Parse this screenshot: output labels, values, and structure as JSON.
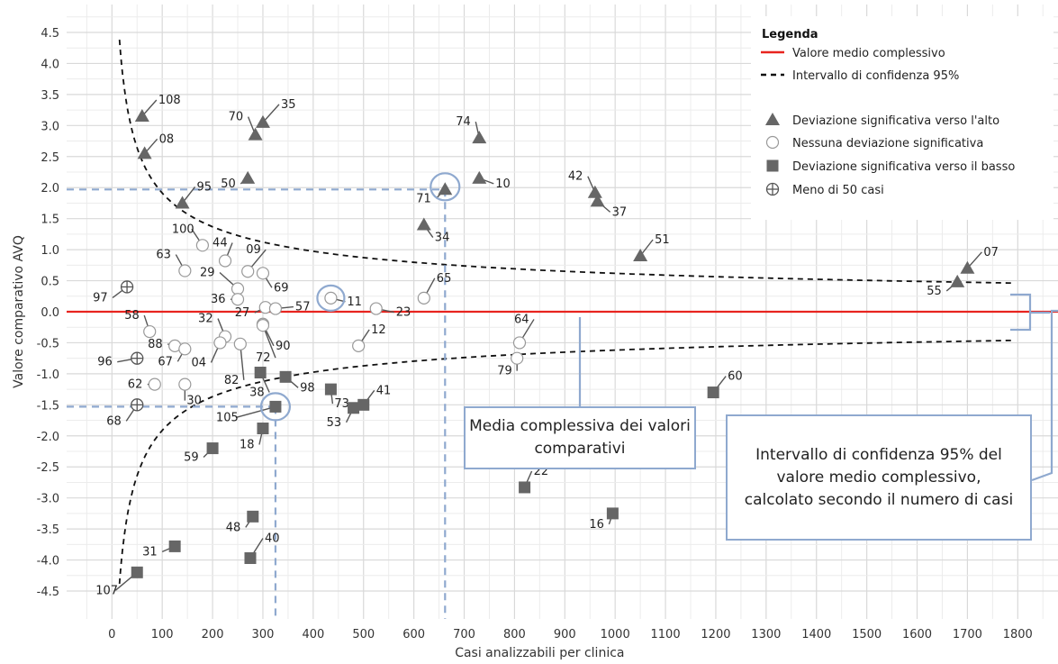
{
  "chart_data": {
    "type": "scatter",
    "xlabel": "Casi analizzabili per clinica",
    "ylabel": "Valore comparativo AVQ",
    "xlim": [
      -90,
      1880
    ],
    "ylim": [
      -4.95,
      4.95
    ],
    "x_ticks": [
      0,
      100,
      200,
      300,
      400,
      500,
      600,
      700,
      800,
      900,
      1000,
      1100,
      1200,
      1300,
      1400,
      1500,
      1600,
      1700,
      1800
    ],
    "y_ticks": [
      4.5,
      4.0,
      3.5,
      3.0,
      2.5,
      2.0,
      1.5,
      1.0,
      0.5,
      0.0,
      -0.5,
      -1.0,
      -1.5,
      -2.0,
      -2.5,
      -3.0,
      -3.5,
      -4.0,
      -4.5
    ],
    "y_tick_labels": [
      "4.5",
      "4.0",
      "3.5",
      "3.0",
      "2.5",
      "2.0",
      "1.5",
      "1.0",
      "0.5",
      "0.0",
      "-0.5",
      "-1.0",
      "-1.5",
      "-2.0",
      "-2.5",
      "-3.0",
      "-3.5",
      "-4.0",
      "-4.5"
    ],
    "grid": true,
    "mean_value": 0.0,
    "legend": {
      "title": "Legenda",
      "position": "top-right",
      "entries": [
        {
          "label": "Valore medio complessivo",
          "kind": "line-solid",
          "color": "#e8241f"
        },
        {
          "label": "Intervallo di confidenza 95%",
          "kind": "line-dashed",
          "color": "#111111"
        },
        {
          "label": "Deviazione significativa verso l'alto",
          "kind": "triangle",
          "color": "#666666"
        },
        {
          "label": "Nessuna deviazione significativa",
          "kind": "circle",
          "color": "#999999"
        },
        {
          "label": "Deviazione significativa verso il basso",
          "kind": "square",
          "color": "#666666"
        },
        {
          "label": "Meno di 50 casi",
          "kind": "crosscircle",
          "color": "#555555"
        }
      ]
    },
    "annotations": [
      {
        "id": "mean",
        "text": "Media complessiva dei valori comparativi"
      },
      {
        "id": "ci",
        "text": "Intervallo di confidenza 95% del valore medio complessivo, calcolato secondo il numero di casi"
      }
    ],
    "series": [
      {
        "type": "up",
        "points": [
          {
            "label": "108",
            "x": 60,
            "y": 3.15
          },
          {
            "label": "08",
            "x": 65,
            "y": 2.55
          },
          {
            "label": "95",
            "x": 140,
            "y": 1.75
          },
          {
            "label": "35",
            "x": 300,
            "y": 3.05
          },
          {
            "label": "70",
            "x": 285,
            "y": 2.85
          },
          {
            "label": "50",
            "x": 270,
            "y": 2.15
          },
          {
            "label": "74",
            "x": 730,
            "y": 2.8
          },
          {
            "label": "10",
            "x": 730,
            "y": 2.15
          },
          {
            "label": "71",
            "x": 662,
            "y": 1.97
          },
          {
            "label": "34",
            "x": 620,
            "y": 1.4
          },
          {
            "label": "42",
            "x": 960,
            "y": 1.92
          },
          {
            "label": "37",
            "x": 965,
            "y": 1.78
          },
          {
            "label": "51",
            "x": 1050,
            "y": 0.9
          },
          {
            "label": "07",
            "x": 1700,
            "y": 0.7
          },
          {
            "label": "55",
            "x": 1680,
            "y": 0.48
          }
        ]
      },
      {
        "type": "none",
        "points": [
          {
            "label": "100",
            "x": 180,
            "y": 1.07
          },
          {
            "label": "44",
            "x": 225,
            "y": 0.82
          },
          {
            "label": "09",
            "x": 270,
            "y": 0.65
          },
          {
            "label": "63",
            "x": 145,
            "y": 0.66
          },
          {
            "label": "69",
            "x": 300,
            "y": 0.62
          },
          {
            "label": "29",
            "x": 250,
            "y": 0.37
          },
          {
            "label": "36",
            "x": 250,
            "y": 0.2
          },
          {
            "label": "27",
            "x": 305,
            "y": 0.07
          },
          {
            "label": "57",
            "x": 325,
            "y": 0.05
          },
          {
            "label": "11",
            "x": 435,
            "y": 0.22
          },
          {
            "label": "65",
            "x": 620,
            "y": 0.22
          },
          {
            "label": "23",
            "x": 525,
            "y": 0.05
          },
          {
            "label": "90",
            "x": 300,
            "y": -0.2
          },
          {
            "label": "72",
            "x": 300,
            "y": -0.22
          },
          {
            "label": "58",
            "x": 75,
            "y": -0.32
          },
          {
            "label": "32",
            "x": 225,
            "y": -0.4
          },
          {
            "label": "88",
            "x": 125,
            "y": -0.55
          },
          {
            "label": "67",
            "x": 145,
            "y": -0.6
          },
          {
            "label": "04",
            "x": 215,
            "y": -0.5
          },
          {
            "label": "82",
            "x": 255,
            "y": -0.52
          },
          {
            "label": "12",
            "x": 490,
            "y": -0.55
          },
          {
            "label": "64",
            "x": 810,
            "y": -0.5
          },
          {
            "label": "79",
            "x": 805,
            "y": -0.75
          },
          {
            "label": "62",
            "x": 85,
            "y": -1.17
          },
          {
            "label": "30",
            "x": 145,
            "y": -1.17
          }
        ]
      },
      {
        "type": "down",
        "points": [
          {
            "label": "38",
            "x": 295,
            "y": -0.98
          },
          {
            "label": "98",
            "x": 345,
            "y": -1.05
          },
          {
            "label": "73",
            "x": 435,
            "y": -1.25
          },
          {
            "label": "41",
            "x": 500,
            "y": -1.5
          },
          {
            "label": "53",
            "x": 480,
            "y": -1.55
          },
          {
            "label": "105",
            "x": 325,
            "y": -1.53
          },
          {
            "label": "18",
            "x": 300,
            "y": -1.88
          },
          {
            "label": "59",
            "x": 200,
            "y": -2.2
          },
          {
            "label": "60",
            "x": 1195,
            "y": -1.3
          },
          {
            "label": "22",
            "x": 820,
            "y": -2.83
          },
          {
            "label": "16",
            "x": 995,
            "y": -3.25
          },
          {
            "label": "48",
            "x": 280,
            "y": -3.3
          },
          {
            "label": "40",
            "x": 275,
            "y": -3.97
          },
          {
            "label": "31",
            "x": 125,
            "y": -3.78
          },
          {
            "label": "107",
            "x": 50,
            "y": -4.2
          }
        ]
      },
      {
        "type": "few",
        "points": [
          {
            "label": "97",
            "x": 30,
            "y": 0.4
          },
          {
            "label": "96",
            "x": 50,
            "y": -0.75
          },
          {
            "label": "68",
            "x": 50,
            "y": -1.5
          }
        ]
      }
    ]
  }
}
